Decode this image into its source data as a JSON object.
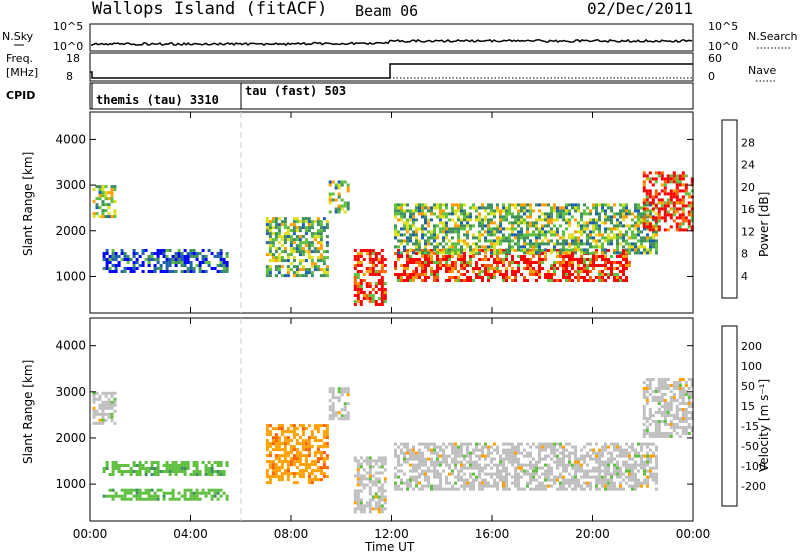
{
  "header": {
    "station": "Wallops Island (fitACF)",
    "beam": "Beam 06",
    "date": "02/Dec/2011"
  },
  "noise_panel": {
    "left_label": "N.Sky",
    "right_label": "N.Search",
    "left_ticks": [
      "10^5",
      "10^0"
    ],
    "right_ticks": [
      "10^5",
      "10^0"
    ]
  },
  "freq_panel": {
    "left_label_1": "Freq.",
    "left_label_2": "[MHz]",
    "right_label": "Nave",
    "left_ticks": [
      "18",
      "8"
    ],
    "right_ticks": [
      "60",
      "0"
    ]
  },
  "cpid_panel": {
    "label": "CPID",
    "modes": [
      {
        "text": "themis (tau) 3310",
        "start_hour": 0
      },
      {
        "text": "tau (fast) 503",
        "start_hour": 6
      }
    ]
  },
  "colors": {
    "power": [
      "#0000ff",
      "#1f5faf",
      "#3f8f5f",
      "#5fbf3f",
      "#dfdf1f",
      "#ffa000",
      "#ff6000",
      "#ff0000"
    ],
    "velocity": [
      "#0000ff",
      "#1f5faf",
      "#3f8f5f",
      "#5fbf3f",
      "#bfbfbf",
      "#ffa000",
      "#ff6000",
      "#ff3000",
      "#ff0000"
    ]
  },
  "chart_data": [
    {
      "type": "heatmap",
      "panel": "power",
      "ylabel": "Slant Range [km]",
      "yticks": [
        "1000",
        "2000",
        "3000",
        "4000"
      ],
      "ylim": [
        200,
        4600
      ],
      "xlim_hours": [
        0,
        24
      ],
      "colorbar_label": "Power [dB]",
      "colorbar_ticks": [
        "28",
        "24",
        "20",
        "16",
        "12",
        "8",
        "4"
      ],
      "echo_regions": [
        {
          "t0": 0.1,
          "t1": 1.0,
          "r0": 2300,
          "r1": 3000,
          "level": "medium"
        },
        {
          "t0": 0.5,
          "t1": 5.5,
          "r0": 1100,
          "r1": 1600,
          "level": "low"
        },
        {
          "t0": 7.0,
          "t1": 9.5,
          "r0": 1000,
          "r1": 2300,
          "level": "medium"
        },
        {
          "t0": 9.5,
          "t1": 10.3,
          "r0": 2400,
          "r1": 3100,
          "level": "medium"
        },
        {
          "t0": 10.5,
          "t1": 11.8,
          "r0": 400,
          "r1": 1600,
          "level": "high"
        },
        {
          "t0": 12.1,
          "t1": 21.5,
          "r0": 900,
          "r1": 1600,
          "level": "high"
        },
        {
          "t0": 12.1,
          "t1": 22.5,
          "r0": 1500,
          "r1": 2600,
          "level": "medium"
        },
        {
          "t0": 22.0,
          "t1": 24.0,
          "r0": 2000,
          "r1": 3300,
          "level": "high"
        }
      ]
    },
    {
      "type": "heatmap",
      "panel": "velocity",
      "ylabel": "Slant Range [km]",
      "yticks": [
        "1000",
        "2000",
        "3000",
        "4000"
      ],
      "ylim": [
        200,
        4600
      ],
      "xlabel": "Time UT",
      "xticks": [
        "00:00",
        "04:00",
        "08:00",
        "12:00",
        "16:00",
        "20:00",
        "00:00"
      ],
      "xlim_hours": [
        0,
        24
      ],
      "colorbar_label": "Velocity [m s⁻¹]",
      "colorbar_ticks": [
        "200",
        "100",
        "50",
        "15",
        "-15",
        "-50",
        "-100",
        "-200"
      ],
      "echo_regions": [
        {
          "t0": 0.1,
          "t1": 1.0,
          "r0": 2300,
          "r1": 3000,
          "level": "zero"
        },
        {
          "t0": 0.5,
          "t1": 5.5,
          "r0": 1200,
          "r1": 1500,
          "level": "pos"
        },
        {
          "t0": 0.5,
          "t1": 5.5,
          "r0": 700,
          "r1": 900,
          "level": "pos"
        },
        {
          "t0": 7.0,
          "t1": 9.5,
          "r0": 1000,
          "r1": 2300,
          "level": "neg"
        },
        {
          "t0": 9.5,
          "t1": 10.3,
          "r0": 2400,
          "r1": 3100,
          "level": "zero"
        },
        {
          "t0": 10.5,
          "t1": 11.8,
          "r0": 400,
          "r1": 1600,
          "level": "zero"
        },
        {
          "t0": 12.1,
          "t1": 22.5,
          "r0": 900,
          "r1": 1900,
          "level": "zero"
        },
        {
          "t0": 22.0,
          "t1": 24.0,
          "r0": 2000,
          "r1": 3300,
          "level": "zero"
        }
      ]
    }
  ]
}
